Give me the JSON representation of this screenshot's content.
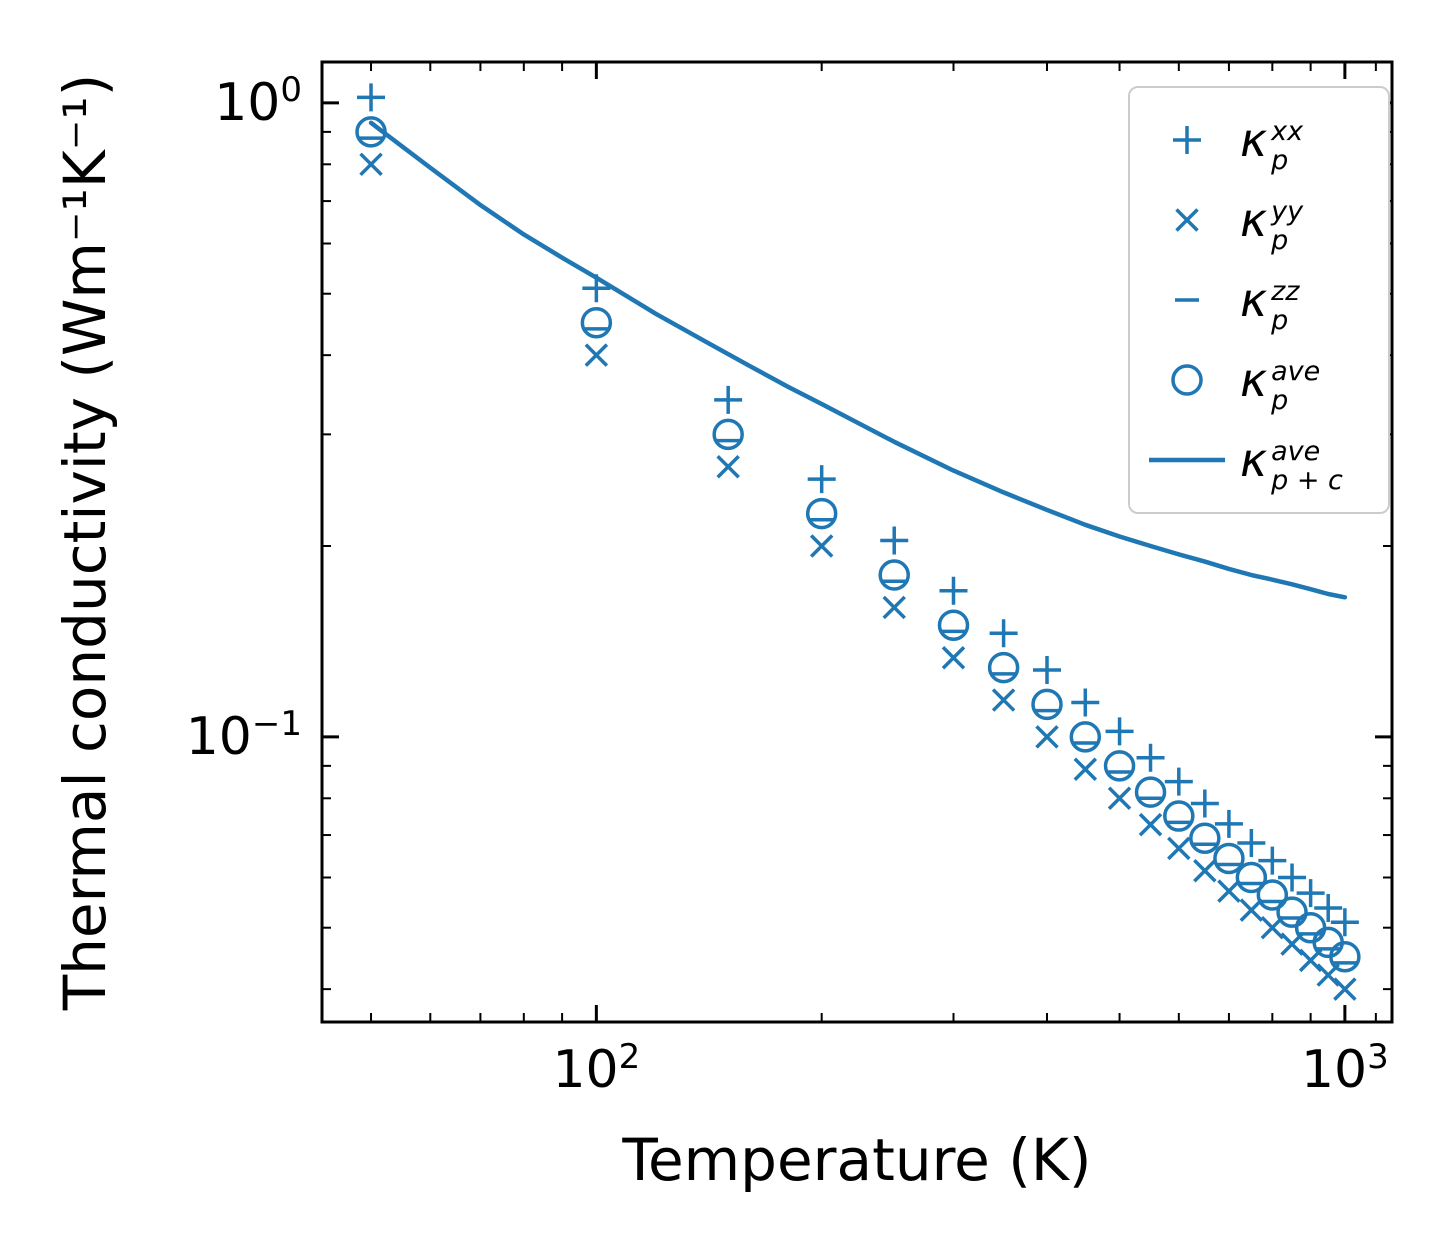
{
  "figure": {
    "background": "#ffffff",
    "frame_color": "#000000"
  },
  "chart_data": {
    "type": "scatter",
    "title": "",
    "xlabel": "Temperature (K)",
    "ylabel": "Thermal conductivity (Wm⁻¹K⁻¹)",
    "xscale": "log",
    "yscale": "log",
    "xlim": [
      43,
      1156
    ],
    "ylim": [
      0.0355,
      1.16
    ],
    "grid": false,
    "legend_position": "upper right",
    "color": "#1f77b4",
    "x_major_ticks": [
      {
        "value": 100,
        "base": "10",
        "exp": "2"
      },
      {
        "value": 1000,
        "base": "10",
        "exp": "3"
      }
    ],
    "x_minor_ticks": [
      50,
      60,
      70,
      80,
      90,
      200,
      300,
      400,
      500,
      600,
      700,
      800,
      900,
      1100
    ],
    "y_major_ticks": [
      {
        "value": 1,
        "base": "10",
        "exp": "0"
      },
      {
        "value": 0.1,
        "base": "10",
        "exp": "−1"
      }
    ],
    "y_minor_ticks": [
      0.04,
      0.05,
      0.06,
      0.07,
      0.08,
      0.09,
      0.2,
      0.3,
      0.4,
      0.5,
      0.6,
      0.7,
      0.8,
      0.9
    ],
    "temperatures": [
      50,
      100,
      150,
      200,
      250,
      300,
      350,
      400,
      450,
      500,
      550,
      600,
      650,
      700,
      750,
      800,
      850,
      900,
      950,
      1000
    ],
    "series": [
      {
        "name": "kappa-p-xx",
        "marker": "plus",
        "legend": {
          "symbol": "κ",
          "sup": "xx",
          "sub": "p"
        },
        "values": [
          1.02,
          0.51,
          0.34,
          0.255,
          0.204,
          0.17,
          0.1457,
          0.1275,
          0.1133,
          0.102,
          0.0927,
          0.085,
          0.0785,
          0.0729,
          0.068,
          0.0638,
          0.06,
          0.0567,
          0.0537,
          0.051
        ]
      },
      {
        "name": "kappa-p-yy",
        "marker": "x",
        "legend": {
          "symbol": "κ",
          "sup": "yy",
          "sub": "p"
        },
        "values": [
          0.8,
          0.4,
          0.2667,
          0.2,
          0.16,
          0.1333,
          0.1143,
          0.1,
          0.0889,
          0.08,
          0.0727,
          0.0667,
          0.0615,
          0.0571,
          0.0533,
          0.05,
          0.0471,
          0.0444,
          0.0421,
          0.04
        ]
      },
      {
        "name": "kappa-p-zz",
        "marker": "hline",
        "legend": {
          "symbol": "κ",
          "sup": "zz",
          "sub": "p"
        },
        "values": [
          0.88,
          0.44,
          0.2933,
          0.22,
          0.176,
          0.1467,
          0.1257,
          0.11,
          0.0978,
          0.088,
          0.08,
          0.0733,
          0.0677,
          0.0629,
          0.0587,
          0.055,
          0.0518,
          0.0489,
          0.0463,
          0.044
        ]
      },
      {
        "name": "kappa-p-ave",
        "marker": "circle",
        "legend": {
          "symbol": "κ",
          "sup": "ave",
          "sub": "p"
        },
        "values": [
          0.9,
          0.45,
          0.3,
          0.225,
          0.18,
          0.15,
          0.1286,
          0.1125,
          0.1,
          0.09,
          0.0818,
          0.075,
          0.0692,
          0.0643,
          0.06,
          0.0563,
          0.0529,
          0.05,
          0.0474,
          0.045
        ]
      },
      {
        "name": "kappa-p-plus-c-ave",
        "marker": "line",
        "legend": {
          "symbol": "κ",
          "sup": "ave",
          "sub": "p + c"
        },
        "x": [
          50,
          60,
          70,
          80,
          90,
          100,
          120,
          140,
          160,
          180,
          200,
          250,
          300,
          350,
          400,
          450,
          500,
          550,
          600,
          650,
          700,
          750,
          800,
          850,
          900,
          950,
          1000
        ],
        "values": [
          0.93,
          0.79,
          0.69,
          0.62,
          0.57,
          0.53,
          0.465,
          0.42,
          0.385,
          0.357,
          0.335,
          0.292,
          0.263,
          0.243,
          0.228,
          0.216,
          0.207,
          0.2,
          0.194,
          0.189,
          0.184,
          0.18,
          0.177,
          0.174,
          0.171,
          0.168,
          0.166
        ]
      }
    ]
  }
}
